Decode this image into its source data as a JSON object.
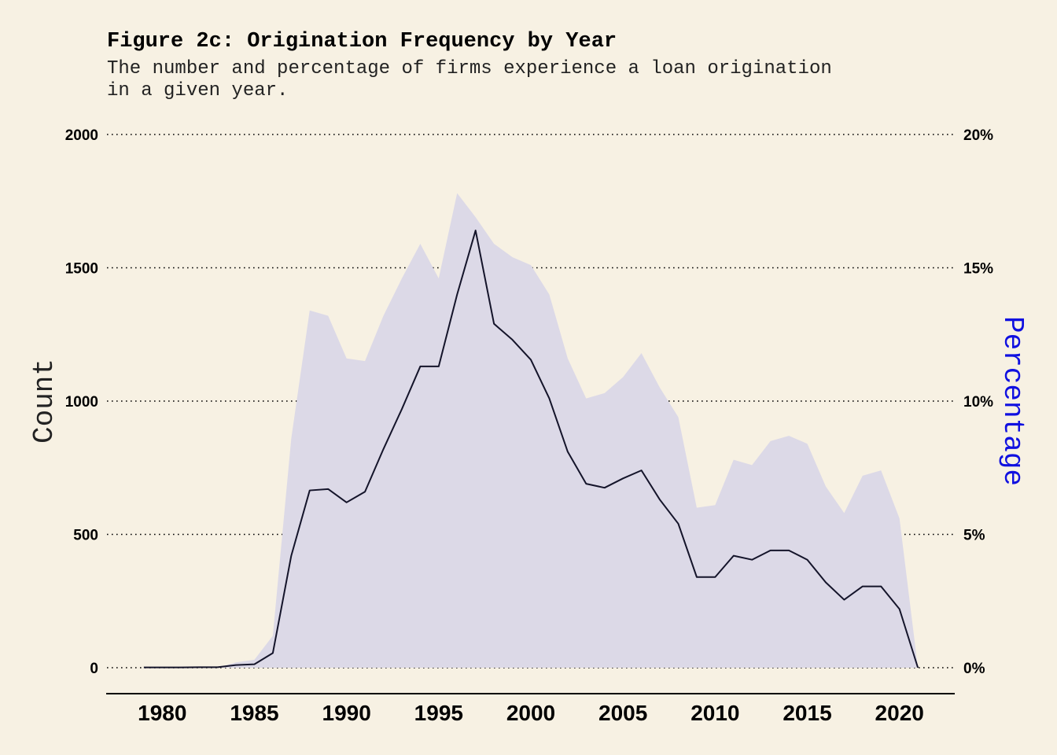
{
  "chart_data": {
    "type": "line",
    "title": "Figure 2c: Origination Frequency by Year",
    "subtitle_lines": [
      "The number and percentage of firms experience a loan origination",
      "in a given year."
    ],
    "xlabel": "",
    "ylabel": "Count",
    "ylabel_right": "Percentage",
    "xlim": [
      1977,
      2023
    ],
    "ylim": [
      0,
      2000
    ],
    "ylim_right": [
      0,
      20
    ],
    "x_ticks": [
      1980,
      1985,
      1990,
      1995,
      2000,
      2005,
      2010,
      2015,
      2020
    ],
    "x_tick_labels": [
      "1980",
      "1985",
      "1990",
      "1995",
      "2000",
      "2005",
      "2010",
      "2015",
      "2020"
    ],
    "y_ticks": [
      0,
      500,
      1000,
      1500,
      2000
    ],
    "y_tick_labels": [
      "0",
      "500",
      "1000",
      "1500",
      "2000"
    ],
    "y_right_ticks": [
      0,
      5,
      10,
      15,
      20
    ],
    "y_right_tick_labels": [
      "0%",
      "5%",
      "10%",
      "15%",
      "20%"
    ],
    "grid": "horizontal dotted",
    "colors": {
      "background": "#f7f1e3",
      "area": "#dcd9e7",
      "line": "#14142a",
      "right_label": "#1010e0"
    },
    "series": [
      {
        "type": "line",
        "axis": "left",
        "x": [
          1979,
          1980,
          1981,
          1982,
          1983,
          1984,
          1985,
          1986,
          1987,
          1988,
          1989,
          1990,
          1991,
          1992,
          1993,
          1994,
          1995,
          1996,
          1997,
          1998,
          1999,
          2000,
          2001,
          2002,
          2003,
          2004,
          2005,
          2006,
          2007,
          2008,
          2009,
          2010,
          2011,
          2012,
          2013,
          2014,
          2015,
          2016,
          2017,
          2018,
          2019,
          2020,
          2021
        ],
        "values": [
          1,
          1,
          1,
          2,
          2,
          10,
          13,
          55,
          420,
          665,
          670,
          620,
          660,
          820,
          970,
          1130,
          1130,
          1400,
          1640,
          1290,
          1230,
          1155,
          1010,
          810,
          690,
          675,
          710,
          740,
          630,
          540,
          340,
          340,
          420,
          405,
          440,
          440,
          405,
          320,
          255,
          305,
          305,
          220,
          0
        ]
      },
      {
        "type": "area",
        "axis": "right",
        "x": [
          1979,
          1980,
          1981,
          1982,
          1983,
          1984,
          1985,
          1986,
          1987,
          1988,
          1989,
          1990,
          1991,
          1992,
          1993,
          1994,
          1995,
          1996,
          1997,
          1998,
          1999,
          2000,
          2001,
          2002,
          2003,
          2004,
          2005,
          2006,
          2007,
          2008,
          2009,
          2010,
          2011,
          2012,
          2013,
          2014,
          2015,
          2016,
          2017,
          2018,
          2019,
          2020,
          2021
        ],
        "values": [
          0.0,
          0.0,
          0.0,
          0.0,
          0.0,
          0.2,
          0.3,
          1.2,
          8.6,
          13.4,
          13.2,
          11.6,
          11.5,
          13.2,
          14.6,
          15.9,
          14.6,
          17.8,
          16.9,
          15.9,
          15.4,
          15.1,
          14.0,
          11.6,
          10.1,
          10.3,
          10.9,
          11.8,
          10.5,
          9.4,
          6.0,
          6.1,
          7.8,
          7.6,
          8.5,
          8.7,
          8.4,
          6.8,
          5.8,
          7.2,
          7.4,
          5.6,
          0.0
        ]
      }
    ]
  }
}
